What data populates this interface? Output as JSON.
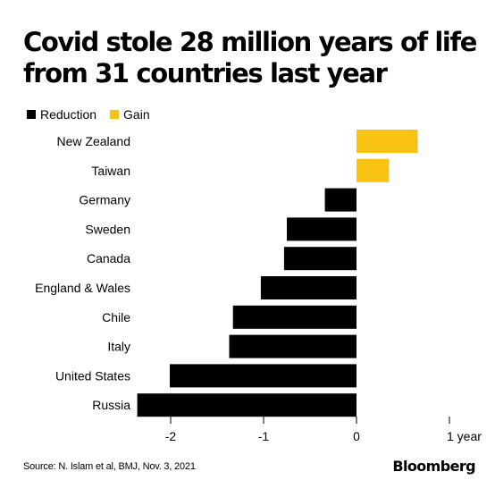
{
  "title_line1": "Covid stole 28 million years of life",
  "title_line2": "from 31 countries last year",
  "legend": [
    {
      "label": "Reduction",
      "color": "#000000"
    },
    {
      "label": "Gain",
      "color": "#f8c313"
    }
  ],
  "source": "Source: N. Islam et al, BMJ, Nov. 3, 2021",
  "brand": "Bloomberg",
  "chart_data": {
    "type": "bar",
    "orientation": "horizontal",
    "categories": [
      "New Zealand",
      "Taiwan",
      "Germany",
      "Sweden",
      "Canada",
      "England & Wales",
      "Chile",
      "Italy",
      "United States",
      "Russia"
    ],
    "values": [
      0.66,
      0.35,
      -0.34,
      -0.75,
      -0.78,
      -1.03,
      -1.33,
      -1.37,
      -2.01,
      -2.36
    ],
    "colors": {
      "negative": "#000000",
      "positive": "#f8c313"
    },
    "xticks": [
      {
        "value": -2,
        "label": "-2"
      },
      {
        "value": -1,
        "label": "-1"
      },
      {
        "value": 0,
        "label": "0"
      },
      {
        "value": 1,
        "label": "1 year"
      }
    ],
    "xlim": [
      -2.4,
      1.0
    ],
    "grid": false
  }
}
